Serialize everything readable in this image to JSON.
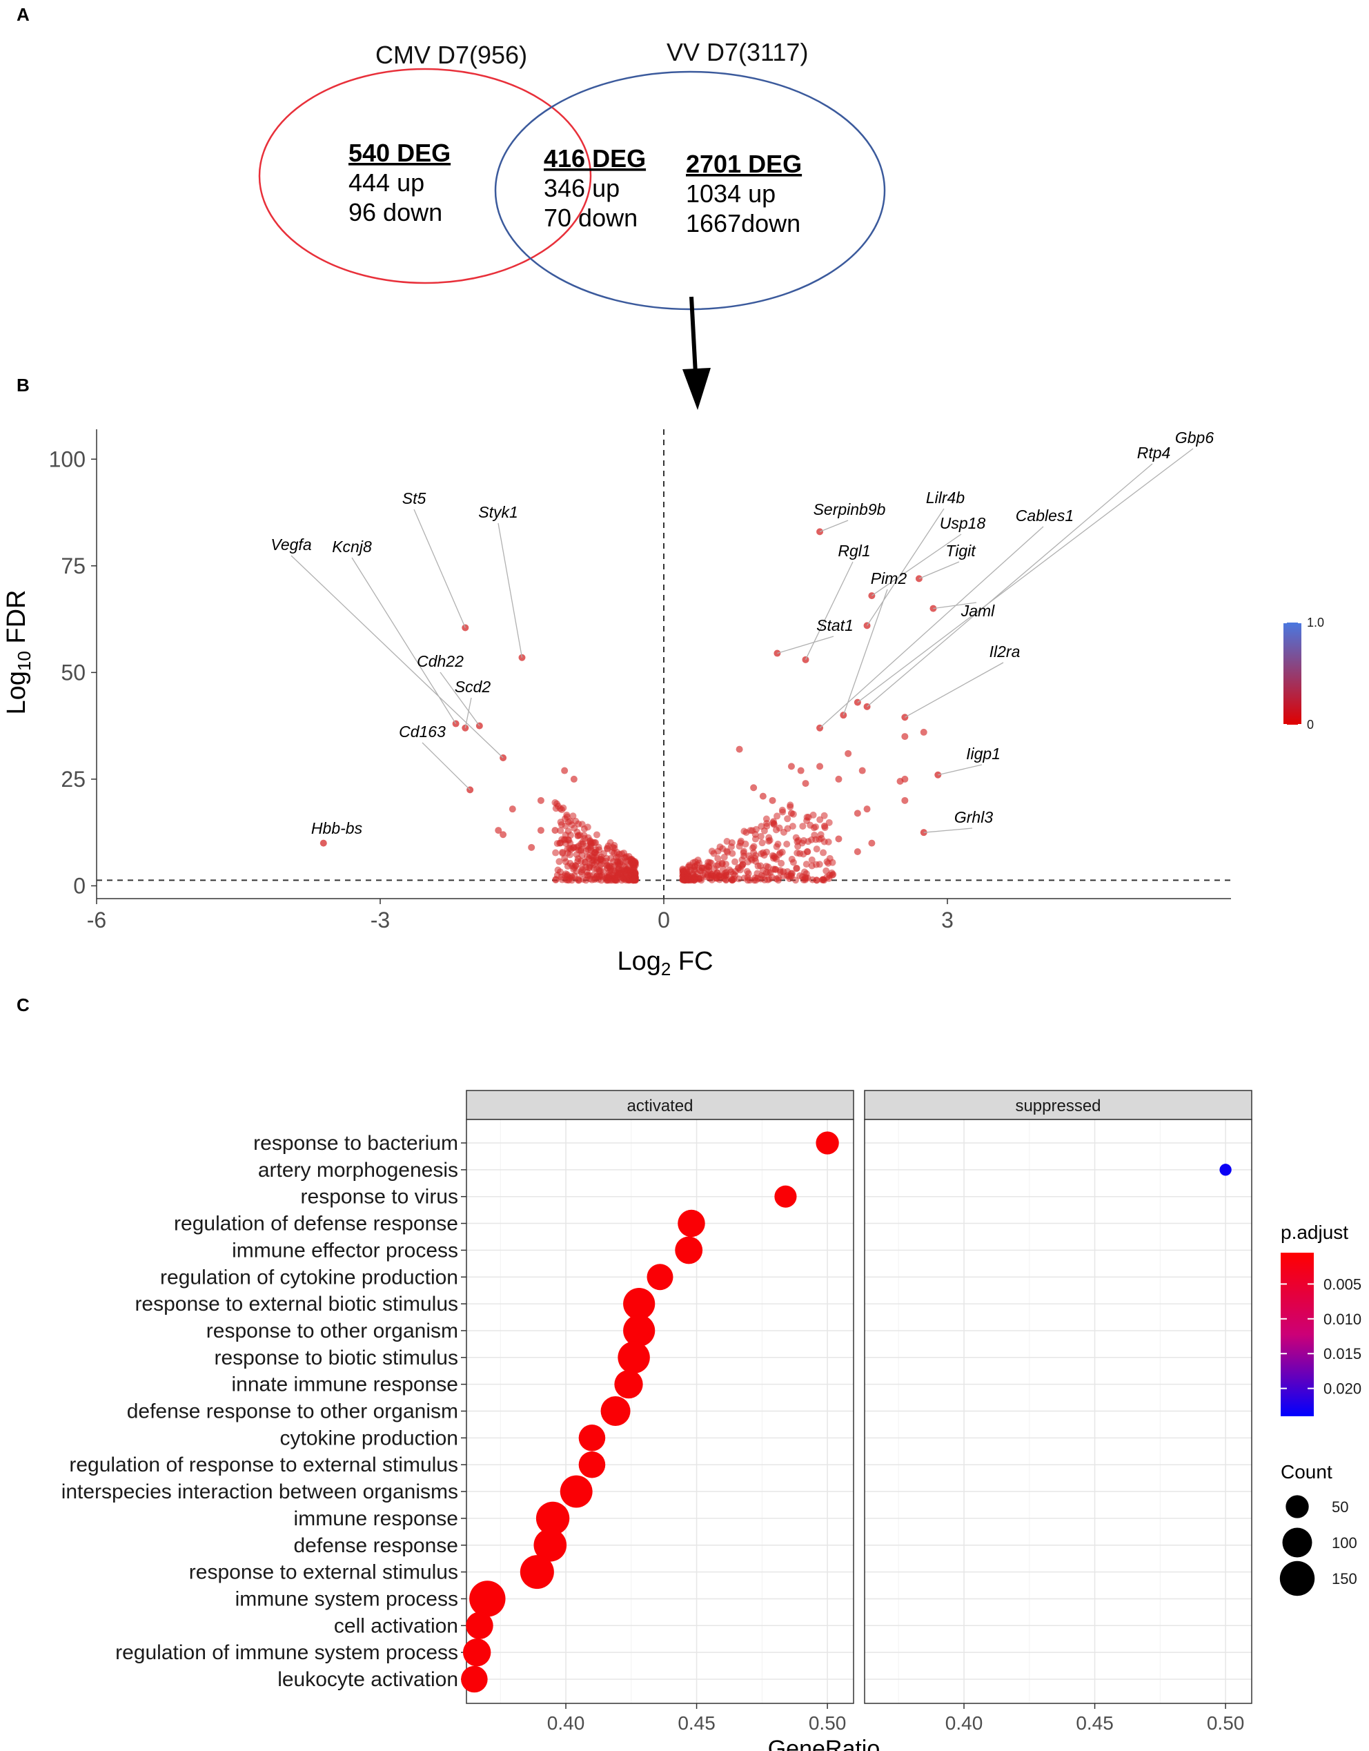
{
  "panels": {
    "a": "A",
    "b": "B",
    "c": "C"
  },
  "venn": {
    "cmv_title": "CMV D7(956)",
    "vv_title": "VV D7(3117)",
    "cmv_color": "#e8303a",
    "vv_color": "#3b5a9c",
    "cmv_only": {
      "deg": "540 DEG",
      "up": "444 up",
      "down": "96 down"
    },
    "overlap": {
      "deg": "416 DEG",
      "up": "346 up",
      "down": "70 down"
    },
    "vv_only": {
      "deg": "2701 DEG",
      "up": "1034 up",
      "down": "1667down"
    }
  },
  "chart_data": [
    {
      "type": "scatter",
      "id": "volcano",
      "xlabel": "Log2 FC",
      "ylabel": "Log10 FDR",
      "xlim": [
        -6.0,
        6.0
      ],
      "ylim": [
        -3,
        107
      ],
      "xticks": [
        -6,
        -3,
        0,
        3
      ],
      "yticks": [
        0,
        25,
        50,
        75,
        100
      ],
      "vline": 0,
      "hline": 1.3,
      "point_color": "#d42a2a",
      "labeled_genes": [
        {
          "gene": "St5",
          "x": -2.1,
          "y": 60.5
        },
        {
          "gene": "Styk1",
          "x": -1.5,
          "y": 53.5
        },
        {
          "gene": "Vegfa",
          "x": -1.7,
          "y": 30
        },
        {
          "gene": "Kcnj8",
          "x": -2.2,
          "y": 38
        },
        {
          "gene": "Cdh22",
          "x": -1.95,
          "y": 37.5
        },
        {
          "gene": "Scd2",
          "x": -2.1,
          "y": 37
        },
        {
          "gene": "Cd163",
          "x": -2.05,
          "y": 22.5
        },
        {
          "gene": "Hbb-bs",
          "x": -3.6,
          "y": 10
        },
        {
          "gene": "Serpinb9b",
          "x": 1.65,
          "y": 83
        },
        {
          "gene": "Lilr4b",
          "x": 2.15,
          "y": 61
        },
        {
          "gene": "Rgl1",
          "x": 1.5,
          "y": 53
        },
        {
          "gene": "Usp18",
          "x": 2.2,
          "y": 68
        },
        {
          "gene": "Tigit",
          "x": 2.7,
          "y": 72
        },
        {
          "gene": "Cables1",
          "x": 1.65,
          "y": 37
        },
        {
          "gene": "Pim2",
          "x": 1.9,
          "y": 40
        },
        {
          "gene": "Stat1",
          "x": 1.2,
          "y": 54.5
        },
        {
          "gene": "Jaml",
          "x": 2.85,
          "y": 65
        },
        {
          "gene": "Gbp6",
          "x": 2.05,
          "y": 43
        },
        {
          "gene": "Rtp4",
          "x": 2.15,
          "y": 42
        },
        {
          "gene": "Il2ra",
          "x": 2.55,
          "y": 39.5
        },
        {
          "gene": "Iigp1",
          "x": 2.9,
          "y": 26
        },
        {
          "gene": "Grhl3",
          "x": 2.75,
          "y": 12.5
        }
      ],
      "extra_points": [
        {
          "x": -1.05,
          "y": 27
        },
        {
          "x": -0.95,
          "y": 25
        },
        {
          "x": -1.3,
          "y": 20
        },
        {
          "x": -1.6,
          "y": 18
        },
        {
          "x": -1.3,
          "y": 13
        },
        {
          "x": -1.7,
          "y": 12
        },
        {
          "x": -1.75,
          "y": 13
        },
        {
          "x": -1.4,
          "y": 9
        },
        {
          "x": -1.1,
          "y": 10
        },
        {
          "x": -0.95,
          "y": 9
        },
        {
          "x": -1.15,
          "y": 13
        },
        {
          "x": 0.8,
          "y": 32
        },
        {
          "x": 1.35,
          "y": 28
        },
        {
          "x": 1.45,
          "y": 27
        },
        {
          "x": 1.65,
          "y": 28
        },
        {
          "x": 1.95,
          "y": 31
        },
        {
          "x": 1.85,
          "y": 25
        },
        {
          "x": 1.5,
          "y": 24
        },
        {
          "x": 2.1,
          "y": 27
        },
        {
          "x": 2.05,
          "y": 17
        },
        {
          "x": 2.15,
          "y": 18
        },
        {
          "x": 2.55,
          "y": 35
        },
        {
          "x": 2.55,
          "y": 25
        },
        {
          "x": 2.55,
          "y": 20
        },
        {
          "x": 2.75,
          "y": 36
        },
        {
          "x": 2.2,
          "y": 10
        },
        {
          "x": 2.05,
          "y": 8
        },
        {
          "x": 1.85,
          "y": 11
        },
        {
          "x": 1.7,
          "y": 14
        },
        {
          "x": 1.35,
          "y": 17
        },
        {
          "x": 1.15,
          "y": 20
        },
        {
          "x": 2.5,
          "y": 24.5
        },
        {
          "x": 0.95,
          "y": 23
        },
        {
          "x": 1.05,
          "y": 21
        }
      ]
    },
    {
      "type": "scatter",
      "id": "go-dotplot",
      "xlabel": "GeneRatio",
      "facets": [
        "activated",
        "suppressed"
      ],
      "xlim": [
        0.362,
        0.51
      ],
      "xticks": [
        0.4,
        0.45,
        0.5
      ],
      "xtick_labels": [
        "0.40",
        "0.45",
        "0.50"
      ],
      "terms": [
        "response to bacterium",
        "artery morphogenesis",
        "response to virus",
        "regulation of defense response",
        "immune effector process",
        "regulation of cytokine production",
        "response to external biotic stimulus",
        "response to other organism",
        "response to biotic stimulus",
        "innate immune response",
        "defense response to other organism",
        "cytokine production",
        "regulation of response to external stimulus",
        "interspecies interaction between organisms",
        "immune response",
        "defense response",
        "response to external stimulus",
        "immune system process",
        "cell activation",
        "regulation of immune system process",
        "leukocyte activation"
      ],
      "series": [
        {
          "name": "activated",
          "points": [
            {
              "term": "response to bacterium",
              "gene_ratio": 0.5,
              "count": 50,
              "p_adjust": 0.001
            },
            {
              "term": "response to virus",
              "gene_ratio": 0.484,
              "count": 45,
              "p_adjust": 0.001
            },
            {
              "term": "regulation of defense response",
              "gene_ratio": 0.448,
              "count": 80,
              "p_adjust": 0.001
            },
            {
              "term": "immune effector process",
              "gene_ratio": 0.447,
              "count": 82,
              "p_adjust": 0.001
            },
            {
              "term": "regulation of cytokine production",
              "gene_ratio": 0.436,
              "count": 72,
              "p_adjust": 0.001
            },
            {
              "term": "response to external biotic stimulus",
              "gene_ratio": 0.428,
              "count": 120,
              "p_adjust": 0.001
            },
            {
              "term": "response to other organism",
              "gene_ratio": 0.428,
              "count": 120,
              "p_adjust": 0.001
            },
            {
              "term": "response to biotic stimulus",
              "gene_ratio": 0.426,
              "count": 122,
              "p_adjust": 0.001
            },
            {
              "term": "innate immune response",
              "gene_ratio": 0.424,
              "count": 90,
              "p_adjust": 0.001
            },
            {
              "term": "defense response to other organism",
              "gene_ratio": 0.419,
              "count": 100,
              "p_adjust": 0.001
            },
            {
              "term": "cytokine production",
              "gene_ratio": 0.41,
              "count": 75,
              "p_adjust": 0.001
            },
            {
              "term": "regulation of response to external stimulus",
              "gene_ratio": 0.41,
              "count": 75,
              "p_adjust": 0.001
            },
            {
              "term": "interspecies interaction between organisms",
              "gene_ratio": 0.404,
              "count": 125,
              "p_adjust": 0.001
            },
            {
              "term": "immune response",
              "gene_ratio": 0.395,
              "count": 135,
              "p_adjust": 0.001
            },
            {
              "term": "defense response",
              "gene_ratio": 0.394,
              "count": 130,
              "p_adjust": 0.001
            },
            {
              "term": "response to external stimulus",
              "gene_ratio": 0.389,
              "count": 140,
              "p_adjust": 0.001
            },
            {
              "term": "immune system process",
              "gene_ratio": 0.37,
              "count": 165,
              "p_adjust": 0.001
            },
            {
              "term": "cell activation",
              "gene_ratio": 0.367,
              "count": 80,
              "p_adjust": 0.001
            },
            {
              "term": "regulation of immune system process",
              "gene_ratio": 0.366,
              "count": 85,
              "p_adjust": 0.001
            },
            {
              "term": "leukocyte activation",
              "gene_ratio": 0.365,
              "count": 75,
              "p_adjust": 0.001
            }
          ]
        },
        {
          "name": "suppressed",
          "points": [
            {
              "term": "artery morphogenesis",
              "gene_ratio": 0.5,
              "count": 5,
              "p_adjust": 0.023
            }
          ]
        }
      ],
      "legend_p_adjust": {
        "title": "p.adjust",
        "labels": [
          "0.005",
          "0.010",
          "0.015",
          "0.020"
        ],
        "values": [
          0.005,
          0.01,
          0.015,
          0.02
        ],
        "range": [
          0.0005,
          0.024
        ],
        "low_color": "#ff0000",
        "high_color": "#0000ff"
      },
      "legend_count": {
        "title": "Count",
        "labels": [
          "50",
          "100",
          "150"
        ],
        "values": [
          50,
          100,
          150
        ]
      }
    }
  ],
  "volcano_legend": {
    "labels": [
      "1.0",
      "0"
    ],
    "values": [
      1.0,
      0
    ],
    "low_color": "#e00000",
    "high_color": "#4a78e0"
  }
}
